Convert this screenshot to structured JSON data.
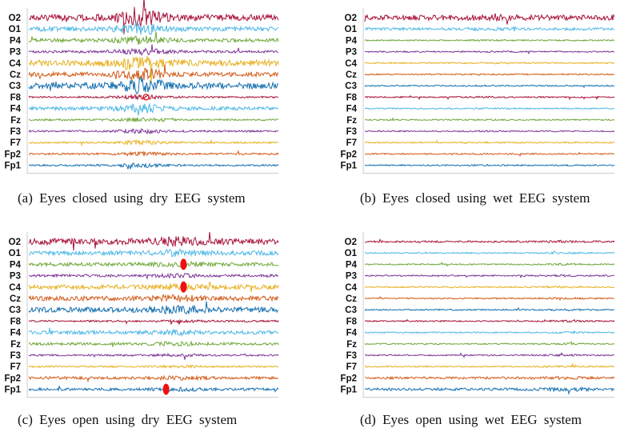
{
  "colors": {
    "O2": "#a8123a",
    "O1": "#4fb8e6",
    "P4": "#6ea83a",
    "P3": "#7e3498",
    "C4": "#e8b020",
    "Cz": "#d25a18",
    "C3": "#1670b0",
    "F8": "#a8123a",
    "F4": "#4fb8e6",
    "Fz": "#6ea83a",
    "F3": "#7e3498",
    "F7": "#e8b020",
    "Fp2": "#d25a18",
    "Fp1": "#1670b0",
    "marker": "#ee1111",
    "axis": "#cccccc"
  },
  "channels": [
    "O2",
    "O1",
    "P4",
    "P3",
    "C4",
    "Cz",
    "C3",
    "F8",
    "F4",
    "Fz",
    "F3",
    "F7",
    "Fp2",
    "Fp1"
  ],
  "panels": [
    {
      "id": "a",
      "caption": "(a)  Eyes  closed  using  dry  EEG  system",
      "amplitudes": [
        7,
        5,
        4,
        3,
        7,
        5,
        7,
        2,
        4,
        2,
        2,
        2,
        2,
        2
      ],
      "burst_center": 0.45,
      "burst_gain": 1.8,
      "markers": [
        {
          "channel": "F8",
          "position": 0.47,
          "style": "ring"
        }
      ]
    },
    {
      "id": "b",
      "caption": "(b)  Eyes  closed  using  wet  EEG  system",
      "amplitudes": [
        6,
        3,
        1.5,
        1.5,
        1.5,
        1.5,
        1.5,
        1.5,
        1.5,
        1.5,
        1.5,
        1.5,
        1.5,
        1.5
      ],
      "burst_center": 0.5,
      "burst_gain": 0.3,
      "markers": []
    },
    {
      "id": "c",
      "caption": "(c)  Eyes  open  using  dry  EEG  system",
      "amplitudes": [
        7,
        5,
        4,
        3,
        5,
        5,
        6,
        2,
        4,
        3,
        2,
        2,
        3,
        3
      ],
      "burst_center": 0.6,
      "burst_gain": 0.8,
      "markers": [
        {
          "channel": "P4",
          "position": 0.62,
          "style": "dot"
        },
        {
          "channel": "C4",
          "position": 0.62,
          "style": "dot"
        },
        {
          "channel": "Fp1",
          "position": 0.55,
          "style": "dot"
        }
      ]
    },
    {
      "id": "d",
      "caption": "(d)  Eyes  open  using  wet  EEG  system",
      "amplitudes": [
        2,
        1.5,
        1.5,
        1.5,
        1.5,
        1.5,
        1.5,
        1.5,
        1.5,
        1.5,
        1.5,
        1.5,
        2.5,
        3
      ],
      "burst_center": 0.8,
      "burst_gain": 0.6,
      "markers": []
    }
  ]
}
